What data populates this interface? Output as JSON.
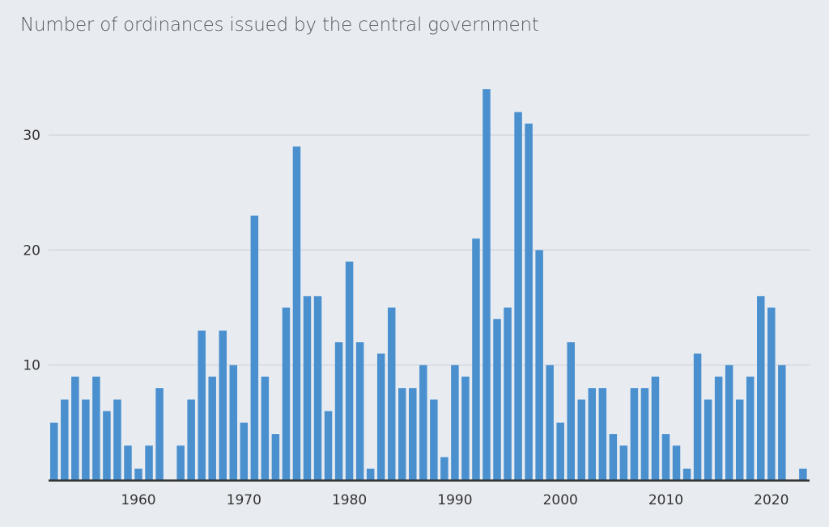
{
  "chart_data": {
    "type": "bar",
    "title": "Number of ordinances issued by the central government",
    "xlabel": "",
    "ylabel": "",
    "ylim": [
      0,
      35
    ],
    "yticks": [
      10,
      20,
      30
    ],
    "xticks": [
      1960,
      1970,
      1980,
      1990,
      2000,
      2010,
      2020
    ],
    "grid": true,
    "bar_color": "#4a90cf",
    "years": [
      1952,
      1953,
      1954,
      1955,
      1956,
      1957,
      1958,
      1959,
      1960,
      1961,
      1962,
      1963,
      1964,
      1965,
      1966,
      1967,
      1968,
      1969,
      1970,
      1971,
      1972,
      1973,
      1974,
      1975,
      1976,
      1977,
      1978,
      1979,
      1980,
      1981,
      1982,
      1983,
      1984,
      1985,
      1986,
      1987,
      1988,
      1989,
      1990,
      1991,
      1992,
      1993,
      1994,
      1995,
      1996,
      1997,
      1998,
      1999,
      2000,
      2001,
      2002,
      2003,
      2004,
      2005,
      2006,
      2007,
      2008,
      2009,
      2010,
      2011,
      2012,
      2013,
      2014,
      2015,
      2016,
      2017,
      2018,
      2019,
      2020,
      2021,
      2022,
      2023
    ],
    "values": [
      5,
      7,
      9,
      7,
      9,
      6,
      7,
      3,
      1,
      3,
      8,
      0,
      3,
      7,
      13,
      9,
      13,
      10,
      5,
      23,
      9,
      4,
      15,
      29,
      16,
      16,
      6,
      12,
      19,
      12,
      1,
      11,
      15,
      8,
      8,
      10,
      7,
      2,
      10,
      9,
      21,
      34,
      14,
      15,
      32,
      31,
      20,
      10,
      5,
      12,
      7,
      8,
      8,
      4,
      3,
      8,
      8,
      9,
      4,
      3,
      1,
      11,
      7,
      9,
      10,
      7,
      9,
      16,
      15,
      10,
      0,
      1
    ]
  }
}
